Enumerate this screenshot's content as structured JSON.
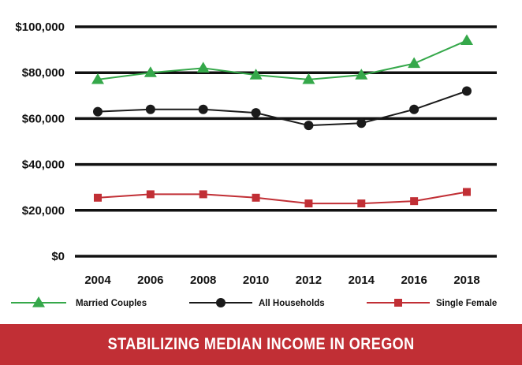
{
  "chart_data": {
    "type": "line",
    "title": "STABILIZING MEDIAN INCOME IN OREGON",
    "xlabel": "",
    "ylabel": "",
    "categories": [
      "2004",
      "2006",
      "2008",
      "2010",
      "2012",
      "2014",
      "2016",
      "2018"
    ],
    "ylim": [
      0,
      100000
    ],
    "yticks": [
      0,
      20000,
      40000,
      60000,
      80000,
      100000
    ],
    "ytick_labels": [
      "$0",
      "$20,000",
      "$40,000",
      "$60,000",
      "$80,000",
      "$100,000"
    ],
    "grid": true,
    "legend_position": "bottom",
    "series": [
      {
        "name": "Married Couples",
        "values": [
          77000,
          80000,
          82000,
          79000,
          77000,
          79000,
          84000,
          94000
        ],
        "color": "#35a84a",
        "marker": "triangle"
      },
      {
        "name": "All Households",
        "values": [
          63000,
          64000,
          64000,
          62500,
          57000,
          58000,
          64000,
          72000
        ],
        "color": "#1a1a1a",
        "marker": "circle"
      },
      {
        "name": "Single Female",
        "values": [
          25500,
          27000,
          27000,
          25500,
          23000,
          23000,
          24000,
          28000
        ],
        "color": "#c12f35",
        "marker": "square"
      }
    ]
  },
  "colors": {
    "gridline": "#111111",
    "footer_background": "#c12f35",
    "footer_text": "#ffffff"
  }
}
